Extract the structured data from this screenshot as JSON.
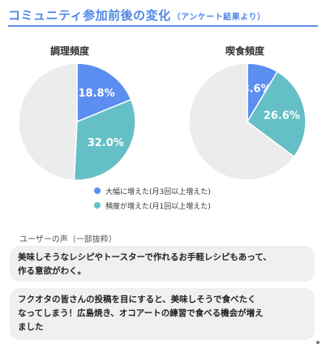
{
  "title": "コミュニティ参加前後の変化",
  "subtitle": "（アンケート結果より）",
  "colors": {
    "accent": "#4f87e6",
    "series_large": "#5b8ef0",
    "series_freq": "#65bfc6",
    "rest": "#ececec"
  },
  "chart_data": [
    {
      "type": "pie",
      "title": "調理頻度",
      "slices": [
        {
          "name": "大幅に増えた(月3回以上増えた)",
          "value": 18.8,
          "label": "18.8%"
        },
        {
          "name": "頻度が増えた(月1回以上増えた)",
          "value": 32.0,
          "label": "32.0%"
        },
        {
          "name": "",
          "value": 49.2,
          "label": ""
        }
      ]
    },
    {
      "type": "pie",
      "title": "喫食頻度",
      "slices": [
        {
          "name": "大幅に増えた(月3回以上増えた)",
          "value": 8.6,
          "label": "8.6%"
        },
        {
          "name": "頻度が増えた(月1回以上増えた)",
          "value": 26.6,
          "label": "26.6%"
        },
        {
          "name": "",
          "value": 64.8,
          "label": ""
        }
      ]
    }
  ],
  "legend": [
    {
      "label": "大幅に増えた(月3回以上増えた)"
    },
    {
      "label": "頻度が増えた(月1回以上増えた)"
    }
  ],
  "voices": {
    "title": "ユーザーの声（一部抜粋）",
    "items": [
      {
        "line1": "美味しそうなレシピやトースターで作れるお手軽レシピもあって、",
        "line2": "作る意欲がわく。",
        "line3": ""
      },
      {
        "line1": "フクオタの皆さんの投稿を目にすると、美味しそうで食べたく",
        "line2": "なってしまう！広島焼き、オコアートの練習で食べる機会が増え",
        "line3": "ました"
      }
    ]
  }
}
